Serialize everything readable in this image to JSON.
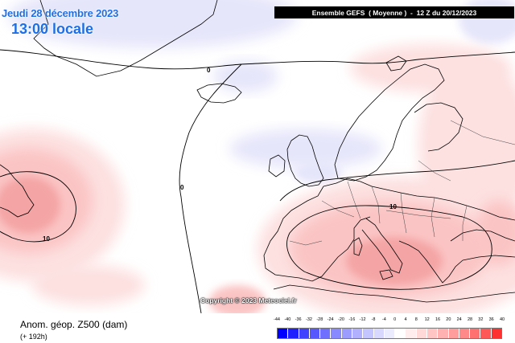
{
  "header": {
    "date": "Jeudi 28 décembre 2023",
    "local_time": "13:00 locale",
    "run_info": "Ensemble GEFS  ( Moyenne )  -  12 Z du 20/12/2023"
  },
  "map": {
    "copyright": "Copyright © 2023 Meteociel.fr",
    "contour_labels": [
      "0",
      "0",
      "10",
      "10"
    ],
    "colors": {
      "ocean_neutral": "#ffffff",
      "light_positive": "#fde0e0",
      "mid_positive": "#fbc4c4",
      "strong_positive": "#f4a4a4",
      "light_negative": "#e6e6fb",
      "coastline": "#000000"
    }
  },
  "footer": {
    "parameter": "Anom. géop. Z500 (dam)",
    "lead_time": "(+ 192h)"
  },
  "legend": {
    "labels": [
      "-44",
      "-40",
      "-36",
      "-32",
      "-28",
      "-24",
      "-20",
      "-16",
      "-12",
      "-8",
      "-4",
      "0",
      "4",
      "8",
      "12",
      "16",
      "20",
      "24",
      "28",
      "32",
      "36",
      "40"
    ],
    "colors": [
      "#0000ff",
      "#2020ff",
      "#4040ff",
      "#5858ff",
      "#7070ff",
      "#8888ff",
      "#9c9cff",
      "#b0b0ff",
      "#c4c4ff",
      "#d8d8ff",
      "#ececff",
      "#ffffff",
      "#ffecec",
      "#ffd8d8",
      "#ffc4c4",
      "#ffb0b0",
      "#ff9c9c",
      "#ff8888",
      "#ff7070",
      "#ff5858",
      "#ff3030"
    ]
  }
}
